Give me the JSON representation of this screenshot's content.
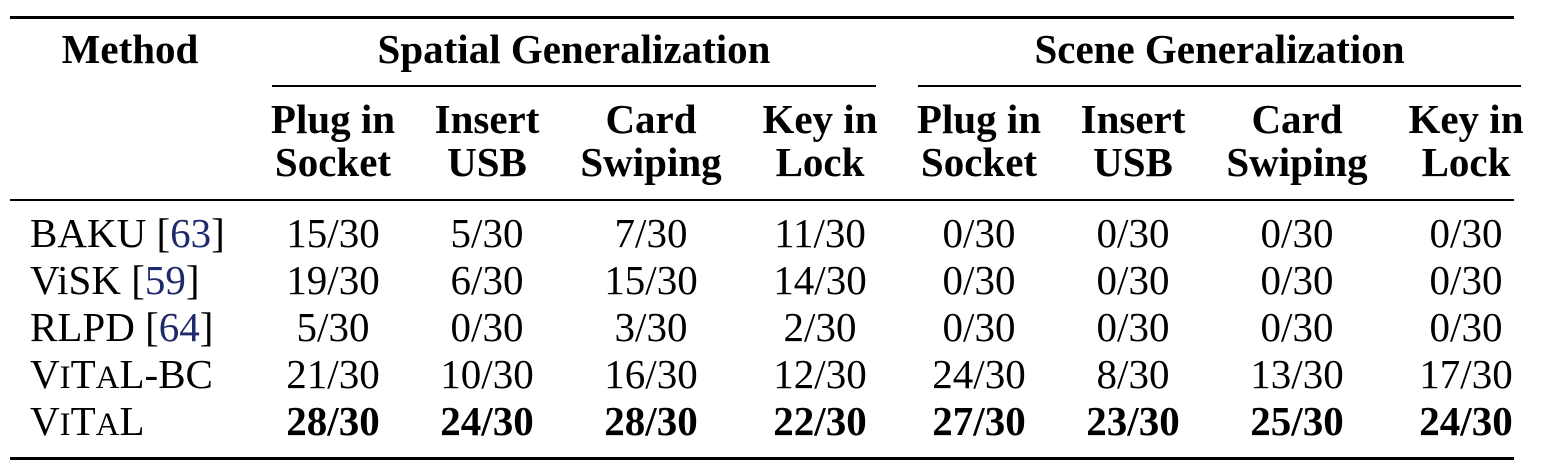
{
  "table": {
    "method_header": "Method",
    "groups": [
      {
        "label": "Spatial Generalization"
      },
      {
        "label": "Scene Generalization"
      }
    ],
    "subheaders": [
      [
        "Plug in",
        "Socket"
      ],
      [
        "Insert",
        "USB"
      ],
      [
        "Card",
        "Swiping"
      ],
      [
        "Key in",
        "Lock"
      ],
      [
        "Plug in",
        "Socket"
      ],
      [
        "Insert",
        "USB"
      ],
      [
        "Card",
        "Swiping"
      ],
      [
        "Key in",
        "Lock"
      ]
    ],
    "rows": [
      {
        "name": "BAKU",
        "cite": "63",
        "values": [
          "15/30",
          "5/30",
          "7/30",
          "11/30",
          "0/30",
          "0/30",
          "0/30",
          "0/30"
        ],
        "bold": false
      },
      {
        "name": "ViSK",
        "cite": "59",
        "values": [
          "19/30",
          "6/30",
          "15/30",
          "14/30",
          "0/30",
          "0/30",
          "0/30",
          "0/30"
        ],
        "bold": false
      },
      {
        "name": "RLPD",
        "cite": "64",
        "values": [
          "5/30",
          "0/30",
          "3/30",
          "2/30",
          "0/30",
          "0/30",
          "0/30",
          "0/30"
        ],
        "bold": false
      },
      {
        "name": "ViTaL-BC",
        "cite": "",
        "values": [
          "21/30",
          "10/30",
          "16/30",
          "12/30",
          "24/30",
          "8/30",
          "13/30",
          "17/30"
        ],
        "bold": false
      },
      {
        "name": "ViTaL",
        "cite": "",
        "values": [
          "28/30",
          "24/30",
          "28/30",
          "22/30",
          "27/30",
          "23/30",
          "25/30",
          "24/30"
        ],
        "bold": true
      }
    ]
  }
}
